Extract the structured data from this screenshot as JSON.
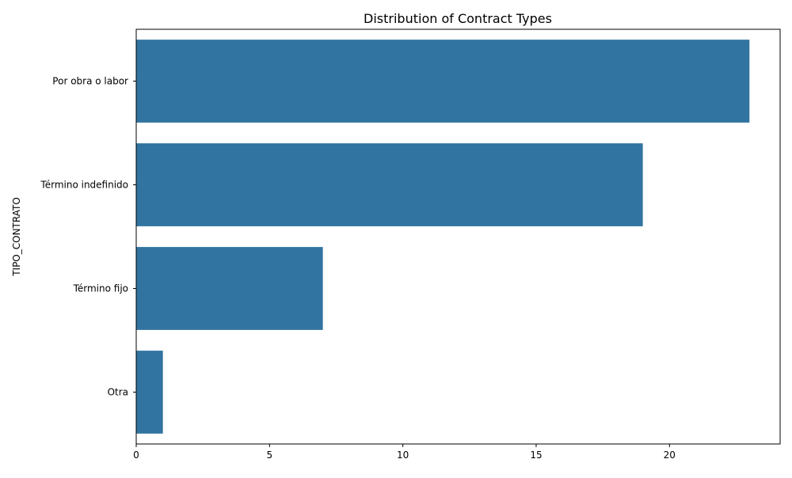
{
  "chart_data": {
    "type": "bar",
    "orientation": "horizontal",
    "title": "Distribution of Contract Types",
    "xlabel": "",
    "ylabel": "TIPO_CONTRATO",
    "categories": [
      "Por obra o labor",
      "Término indefinido",
      "Término fijo",
      "Otra"
    ],
    "values": [
      23,
      19,
      7,
      1
    ],
    "xlim": [
      0,
      24.15
    ],
    "x_ticks": [
      0,
      5,
      10,
      15,
      20
    ],
    "grid": false,
    "legend": "none",
    "bar_color": "#3274a1"
  }
}
